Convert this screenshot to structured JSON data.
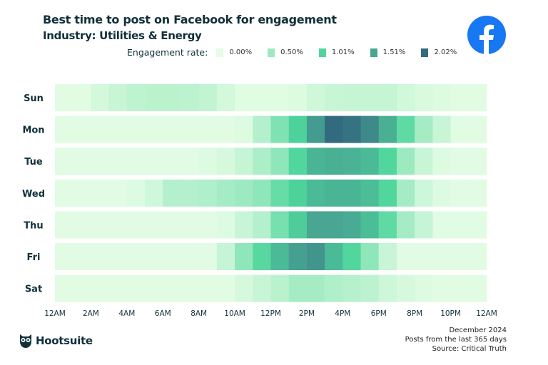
{
  "header": {
    "title": "Best time to post on Facebook for engagement",
    "subtitle": "Industry: Utilities & Energy"
  },
  "legend": {
    "label": "Engagement rate:",
    "items": [
      {
        "label": "0.00%",
        "color": "#e4fde4"
      },
      {
        "label": "0.50%",
        "color": "#9eeac0"
      },
      {
        "label": "1.01%",
        "color": "#4fd69c"
      },
      {
        "label": "1.51%",
        "color": "#48a592"
      },
      {
        "label": "2.02%",
        "color": "#326a80"
      }
    ]
  },
  "brand": {
    "logo_icon": "facebook-icon",
    "logo_color": "#1877f2",
    "footer_logo": "Hootsuite"
  },
  "footer": {
    "line1": "December 2024",
    "line2": "Posts from the last 365 days",
    "line3": "Source: Critical Truth"
  },
  "chart_data": {
    "type": "heatmap",
    "title": "Best time to post on Facebook for engagement",
    "subtitle": "Industry: Utilities & Energy",
    "unit": "%",
    "color_scale": {
      "min": 0,
      "max": 2.02,
      "stops": [
        0,
        0.5,
        1.01,
        1.51,
        2.02
      ]
    },
    "rows": [
      "Sun",
      "Mon",
      "Tue",
      "Wed",
      "Thu",
      "Fri",
      "Sat"
    ],
    "x_ticks": [
      "12AM",
      "2AM",
      "4AM",
      "6AM",
      "8AM",
      "10AM",
      "12PM",
      "2PM",
      "4PM",
      "6PM",
      "8PM",
      "10PM",
      "12AM"
    ],
    "values": [
      [
        0.02,
        0.02,
        0.12,
        0.2,
        0.27,
        0.3,
        0.3,
        0.28,
        0.24,
        0.12,
        0.03,
        0.03,
        0.03,
        0.05,
        0.15,
        0.2,
        0.22,
        0.22,
        0.22,
        0.14,
        0.08,
        0.06,
        0.02,
        0.02
      ],
      [
        0.02,
        0.02,
        0.02,
        0.02,
        0.02,
        0.02,
        0.02,
        0.02,
        0.02,
        0.02,
        0.06,
        0.35,
        0.7,
        1.05,
        1.6,
        2.02,
        1.95,
        1.75,
        1.4,
        0.9,
        0.45,
        0.2,
        0.03,
        0.02
      ],
      [
        0.02,
        0.02,
        0.02,
        0.02,
        0.02,
        0.02,
        0.02,
        0.02,
        0.05,
        0.1,
        0.22,
        0.4,
        0.6,
        1.0,
        1.35,
        1.4,
        1.38,
        1.3,
        1.0,
        0.5,
        0.2,
        0.06,
        0.02,
        0.02
      ],
      [
        0.02,
        0.02,
        0.02,
        0.02,
        0.06,
        0.15,
        0.35,
        0.35,
        0.38,
        0.45,
        0.5,
        0.6,
        0.85,
        1.05,
        1.3,
        1.35,
        1.35,
        1.25,
        1.0,
        0.45,
        0.17,
        0.06,
        0.02,
        0.02
      ],
      [
        0.02,
        0.02,
        0.02,
        0.02,
        0.02,
        0.02,
        0.02,
        0.02,
        0.02,
        0.06,
        0.2,
        0.35,
        0.75,
        1.1,
        1.5,
        1.5,
        1.45,
        1.25,
        0.9,
        0.45,
        0.22,
        0.03,
        0.03,
        0.03
      ],
      [
        0.02,
        0.02,
        0.02,
        0.02,
        0.02,
        0.02,
        0.02,
        0.02,
        0.02,
        0.22,
        0.6,
        0.95,
        1.3,
        1.55,
        1.65,
        1.3,
        1.0,
        0.6,
        0.2,
        0.02,
        0.02,
        0.02,
        0.02,
        0.02
      ],
      [
        0.02,
        0.02,
        0.02,
        0.02,
        0.02,
        0.02,
        0.02,
        0.02,
        0.02,
        0.02,
        0.1,
        0.2,
        0.3,
        0.45,
        0.45,
        0.38,
        0.33,
        0.28,
        0.17,
        0.1,
        0.05,
        0.02,
        0.02,
        0.02
      ]
    ]
  }
}
